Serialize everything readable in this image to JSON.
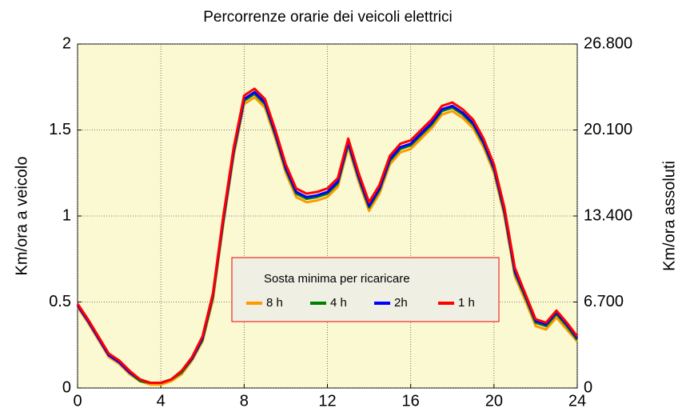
{
  "chart_data": {
    "type": "line",
    "title": "Percorrenze orarie dei veicoli elettrici",
    "ylabel": "Km/ora   a  veicolo",
    "y2label": "Km/ora  assoluti",
    "x": [
      0,
      0.5,
      1,
      1.5,
      2,
      2.5,
      3,
      3.5,
      4,
      4.5,
      5,
      5.5,
      6,
      6.5,
      7,
      7.5,
      8,
      8.5,
      9,
      9.5,
      10,
      10.5,
      11,
      11.5,
      12,
      12.5,
      13,
      13.5,
      14,
      14.5,
      15,
      15.5,
      16,
      16.5,
      17,
      17.5,
      18,
      18.5,
      19,
      19.5,
      20,
      20.5,
      21,
      21.5,
      22,
      22.5,
      23,
      23.5,
      24
    ],
    "xlim": [
      0,
      24
    ],
    "xticks": [
      0,
      4,
      8,
      12,
      16,
      20,
      24
    ],
    "ylim": [
      0,
      2
    ],
    "yticks": [
      0,
      0.5,
      1,
      1.5,
      2
    ],
    "y2lim": [
      0,
      26800
    ],
    "y2ticks": [
      0,
      {
        "value": 6700,
        "label": "6.700"
      },
      {
        "value": 13400,
        "label": "13.400"
      },
      {
        "value": 20100,
        "label": "20.100"
      },
      {
        "value": 26800,
        "label": "26.800"
      }
    ],
    "grid": true,
    "legend_position": "center",
    "legend_title": "Sosta minima per ricaricare",
    "series": [
      {
        "name": "8 h",
        "color": "#ff9900",
        "values": [
          0.47,
          0.38,
          0.28,
          0.18,
          0.14,
          0.08,
          0.04,
          0.02,
          0.02,
          0.04,
          0.08,
          0.16,
          0.27,
          0.51,
          0.95,
          1.35,
          1.65,
          1.69,
          1.63,
          1.45,
          1.25,
          1.11,
          1.08,
          1.09,
          1.11,
          1.17,
          1.4,
          1.2,
          1.03,
          1.13,
          1.3,
          1.37,
          1.39,
          1.45,
          1.51,
          1.59,
          1.61,
          1.57,
          1.51,
          1.4,
          1.25,
          1.0,
          0.65,
          0.51,
          0.36,
          0.34,
          0.41,
          0.34,
          0.27
        ]
      },
      {
        "name": "4 h",
        "color": "#008000",
        "values": [
          0.48,
          0.39,
          0.29,
          0.19,
          0.15,
          0.09,
          0.04,
          0.03,
          0.03,
          0.05,
          0.09,
          0.17,
          0.28,
          0.53,
          0.97,
          1.37,
          1.67,
          1.71,
          1.65,
          1.47,
          1.27,
          1.13,
          1.1,
          1.11,
          1.13,
          1.19,
          1.42,
          1.22,
          1.05,
          1.15,
          1.32,
          1.39,
          1.41,
          1.47,
          1.53,
          1.61,
          1.63,
          1.59,
          1.53,
          1.42,
          1.27,
          1.02,
          0.67,
          0.53,
          0.38,
          0.36,
          0.43,
          0.36,
          0.28
        ]
      },
      {
        "name": "2h",
        "color": "#0000ff",
        "values": [
          0.48,
          0.39,
          0.29,
          0.19,
          0.15,
          0.09,
          0.05,
          0.03,
          0.03,
          0.05,
          0.1,
          0.17,
          0.29,
          0.54,
          0.98,
          1.38,
          1.68,
          1.72,
          1.66,
          1.48,
          1.28,
          1.14,
          1.11,
          1.12,
          1.14,
          1.2,
          1.43,
          1.23,
          1.06,
          1.16,
          1.33,
          1.4,
          1.42,
          1.48,
          1.54,
          1.62,
          1.64,
          1.6,
          1.54,
          1.43,
          1.28,
          1.03,
          0.68,
          0.54,
          0.39,
          0.37,
          0.44,
          0.37,
          0.29
        ]
      },
      {
        "name": "1 h",
        "color": "#ff0000",
        "values": [
          0.49,
          0.4,
          0.3,
          0.2,
          0.16,
          0.1,
          0.05,
          0.03,
          0.03,
          0.05,
          0.1,
          0.18,
          0.3,
          0.55,
          1.0,
          1.4,
          1.7,
          1.74,
          1.68,
          1.5,
          1.3,
          1.16,
          1.13,
          1.14,
          1.16,
          1.22,
          1.45,
          1.25,
          1.08,
          1.18,
          1.35,
          1.42,
          1.44,
          1.5,
          1.56,
          1.64,
          1.66,
          1.62,
          1.56,
          1.45,
          1.3,
          1.05,
          0.7,
          0.55,
          0.4,
          0.38,
          0.45,
          0.38,
          0.3
        ]
      }
    ]
  }
}
